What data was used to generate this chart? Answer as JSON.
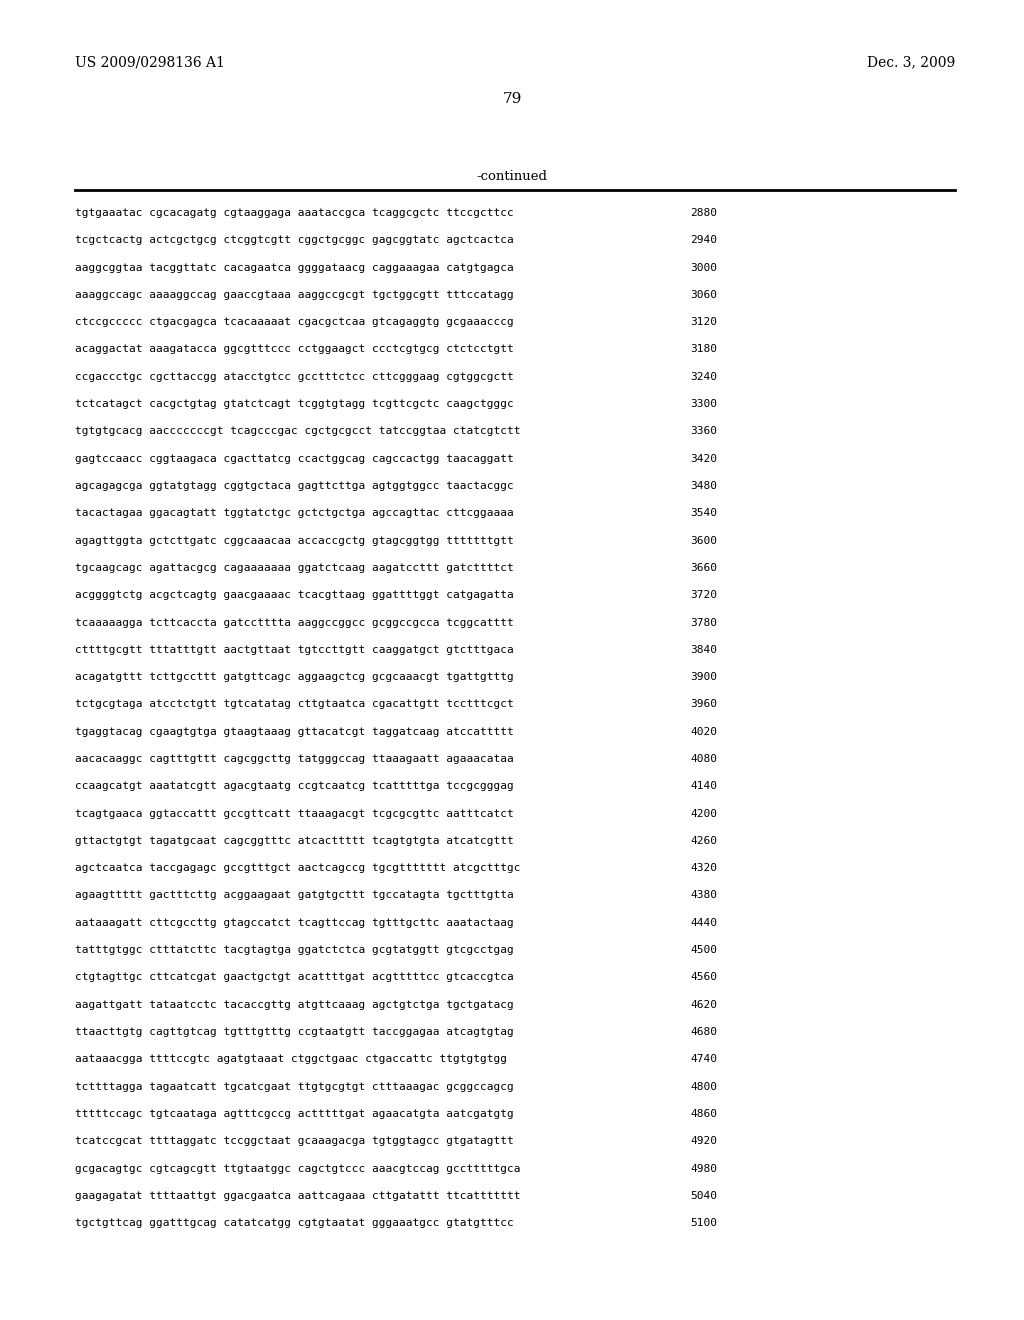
{
  "header_left": "US 2009/0298136 A1",
  "header_right": "Dec. 3, 2009",
  "page_number": "79",
  "continued_label": "-continued",
  "background_color": "#ffffff",
  "text_color": "#000000",
  "sequence_lines": [
    [
      "tgtgaaatac cgcacagatg cgtaaggaga aaataccgca tcaggcgctc ttccgcttcc",
      "2880"
    ],
    [
      "tcgctcactg actcgctgcg ctcggtcgtt cggctgcggc gagcggtatc agctcactca",
      "2940"
    ],
    [
      "aaggcggtaa tacggttatc cacagaatca ggggataacg caggaaagaa catgtgagca",
      "3000"
    ],
    [
      "aaaggccagc aaaaggccag gaaccgtaaa aaggccgcgt tgctggcgtt tttccatagg",
      "3060"
    ],
    [
      "ctccgccccc ctgacgagca tcacaaaaat cgacgctcaa gtcagaggtg gcgaaacccg",
      "3120"
    ],
    [
      "acaggactat aaagatacca ggcgtttccc cctggaagct ccctcgtgcg ctctcctgtt",
      "3180"
    ],
    [
      "ccgaccctgc cgcttaccgg atacctgtcc gcctttctcc cttcgggaag cgtggcgctt",
      "3240"
    ],
    [
      "tctcatagct cacgctgtag gtatctcagt tcggtgtagg tcgttcgctc caagctgggc",
      "3300"
    ],
    [
      "tgtgtgcacg aacccccccgt tcagcccgac cgctgcgcct tatccggtaa ctatcgtctt",
      "3360"
    ],
    [
      "gagtccaacc cggtaagaca cgacttatcg ccactggcag cagccactgg taacaggatt",
      "3420"
    ],
    [
      "agcagagcga ggtatgtagg cggtgctaca gagttcttga agtggtggcc taactacggc",
      "3480"
    ],
    [
      "tacactagaa ggacagtatt tggtatctgc gctctgctga agccagttac cttcggaaaa",
      "3540"
    ],
    [
      "agagttggta gctcttgatc cggcaaacaa accaccgctg gtagcggtgg tttttttgtt",
      "3600"
    ],
    [
      "tgcaagcagc agattacgcg cagaaaaaaa ggatctcaag aagatccttt gatcttttct",
      "3660"
    ],
    [
      "acggggtctg acgctcagtg gaacgaaaac tcacgttaag ggattttggt catgagatta",
      "3720"
    ],
    [
      "tcaaaaagga tcttcaccta gatcctttta aaggccggcc gcggccgcca tcggcatttt",
      "3780"
    ],
    [
      "cttttgcgtt tttatttgtt aactgttaat tgtccttgtt caaggatgct gtctttgaca",
      "3840"
    ],
    [
      "acagatgttt tcttgccttt gatgttcagc aggaagctcg gcgcaaacgt tgattgtttg",
      "3900"
    ],
    [
      "tctgcgtaga atcctctgtt tgtcatatag cttgtaatca cgacattgtt tcctttcgct",
      "3960"
    ],
    [
      "tgaggtacag cgaagtgtga gtaagtaaag gttacatcgt taggatcaag atccattttt",
      "4020"
    ],
    [
      "aacacaaggc cagtttgttt cagcggcttg tatgggccag ttaaagaatt agaaacataa",
      "4080"
    ],
    [
      "ccaagcatgt aaatatcgtt agacgtaatg ccgtcaatcg tcatttttga tccgcgggag",
      "4140"
    ],
    [
      "tcagtgaaca ggtaccattt gccgttcatt ttaaagacgt tcgcgcgttc aatttcatct",
      "4200"
    ],
    [
      "gttactgtgt tagatgcaat cagcggtttc atcacttttt tcagtgtgta atcatcgttt",
      "4260"
    ],
    [
      "agctcaatca taccgagagc gccgtttgct aactcagccg tgcgttttttt atcgctttgc",
      "4320"
    ],
    [
      "agaagttttt gactttcttg acggaagaat gatgtgcttt tgccatagta tgctttgtta",
      "4380"
    ],
    [
      "aataaagatt cttcgccttg gtagccatct tcagttccag tgtttgcttc aaatactaag",
      "4440"
    ],
    [
      "tatttgtggc ctttatcttc tacgtagtga ggatctctca gcgtatggtt gtcgcctgag",
      "4500"
    ],
    [
      "ctgtagttgc cttcatcgat gaactgctgt acattttgat acgtttttcc gtcaccgtca",
      "4560"
    ],
    [
      "aagattgatt tataatcctc tacaccgttg atgttcaaag agctgtctga tgctgatacg",
      "4620"
    ],
    [
      "ttaacttgtg cagttgtcag tgtttgtttg ccgtaatgtt taccggagaa atcagtgtag",
      "4680"
    ],
    [
      "aataaacgga ttttccgtc agatgtaaat ctggctgaac ctgaccattc ttgtgtgtgg",
      "4740"
    ],
    [
      "tcttttagga tagaatcatt tgcatcgaat ttgtgcgtgt ctttaaagac gcggccagcg",
      "4800"
    ],
    [
      "tttttccagc tgtcaataga agtttcgccg actttttgat agaacatgta aatcgatgtg",
      "4860"
    ],
    [
      "tcatccgcat ttttaggatc tccggctaat gcaaagacga tgtggtagcc gtgatagttt",
      "4920"
    ],
    [
      "gcgacagtgc cgtcagcgtt ttgtaatggc cagctgtccc aaacgtccag gcctttttgca",
      "4980"
    ],
    [
      "gaagagatat ttttaattgt ggacgaatca aattcagaaa cttgatattt ttcattttttt",
      "5040"
    ],
    [
      "tgctgttcag ggatttgcag catatcatgg cgtgtaatat gggaaatgcc gtatgtttcc",
      "5100"
    ]
  ]
}
